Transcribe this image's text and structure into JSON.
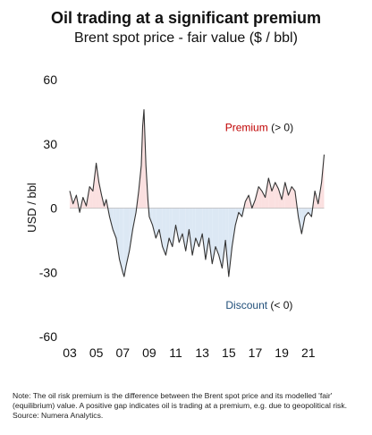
{
  "chart_data": {
    "type": "area",
    "title": "Oil trading at a significant premium",
    "subtitle": "Brent spot price - fair value ($ / bbl)",
    "ylabel": "USD / bbl",
    "xlabel": "",
    "ylim": [
      -60,
      60
    ],
    "xlim": [
      2003,
      2022.3
    ],
    "yticks": [
      60,
      30,
      0,
      -30,
      -60
    ],
    "xticks": [
      2003,
      2005,
      2007,
      2009,
      2011,
      2013,
      2015,
      2017,
      2019,
      2021
    ],
    "xtick_labels": [
      "03",
      "05",
      "07",
      "09",
      "11",
      "13",
      "15",
      "17",
      "19",
      "21"
    ],
    "grid": false,
    "colors": {
      "line": "#333333",
      "premium_fill": "#fbe0e0",
      "discount_fill": "#dce8f4",
      "premium_text": "#c00000",
      "discount_text": "#1f4e79"
    },
    "annotations": [
      {
        "label": "Premium",
        "suffix": " (> 0)",
        "x": 2017.3,
        "y": 36
      },
      {
        "label": "Discount",
        "suffix": " (< 0)",
        "x": 2017.3,
        "y": -47
      }
    ],
    "series": [
      {
        "x": [
          2003.0,
          2003.25,
          2003.5,
          2003.75,
          2004.0,
          2004.25,
          2004.5,
          2004.75,
          2005.0,
          2005.2,
          2005.4,
          2005.6,
          2005.75,
          2006.0,
          2006.25,
          2006.5,
          2006.75,
          2007.0,
          2007.1,
          2007.25,
          2007.5,
          2007.75,
          2008.0,
          2008.2,
          2008.4,
          2008.5,
          2008.6,
          2008.75,
          2008.9,
          2009.0,
          2009.25,
          2009.5,
          2009.75,
          2010.0,
          2010.25,
          2010.5,
          2010.75,
          2011.0,
          2011.25,
          2011.5,
          2011.75,
          2012.0,
          2012.25,
          2012.5,
          2012.75,
          2013.0,
          2013.25,
          2013.5,
          2013.75,
          2014.0,
          2014.25,
          2014.5,
          2014.75,
          2015.0,
          2015.25,
          2015.5,
          2015.75,
          2016.0,
          2016.25,
          2016.5,
          2016.75,
          2017.0,
          2017.25,
          2017.5,
          2017.75,
          2018.0,
          2018.25,
          2018.5,
          2018.75,
          2019.0,
          2019.25,
          2019.5,
          2019.75,
          2020.0,
          2020.25,
          2020.5,
          2020.75,
          2021.0,
          2021.25,
          2021.5,
          2021.75,
          2022.0,
          2022.2
        ],
        "values": [
          8,
          2,
          6,
          -2,
          5,
          1,
          10,
          8,
          21,
          12,
          6,
          1,
          4,
          -4,
          -10,
          -14,
          -24,
          -30,
          -32,
          -27,
          -20,
          -10,
          -2,
          8,
          20,
          38,
          46,
          20,
          4,
          -4,
          -8,
          -14,
          -10,
          -18,
          -22,
          -14,
          -18,
          -8,
          -16,
          -12,
          -20,
          -10,
          -22,
          -14,
          -18,
          -12,
          -24,
          -14,
          -26,
          -18,
          -22,
          -28,
          -15,
          -32,
          -18,
          -8,
          -2,
          -4,
          3,
          6,
          0,
          4,
          10,
          8,
          5,
          14,
          8,
          12,
          9,
          4,
          12,
          6,
          10,
          8,
          -4,
          -12,
          -4,
          -2,
          -4,
          8,
          2,
          12,
          25
        ]
      }
    ],
    "note": "Note: The oil risk premium is the difference between the Brent spot price and its modelled 'fair' (equilibrium) value. A positive gap indicates oil is trading at a premium, e.g. due to geopolitical risk. Source: Numera Analytics."
  }
}
